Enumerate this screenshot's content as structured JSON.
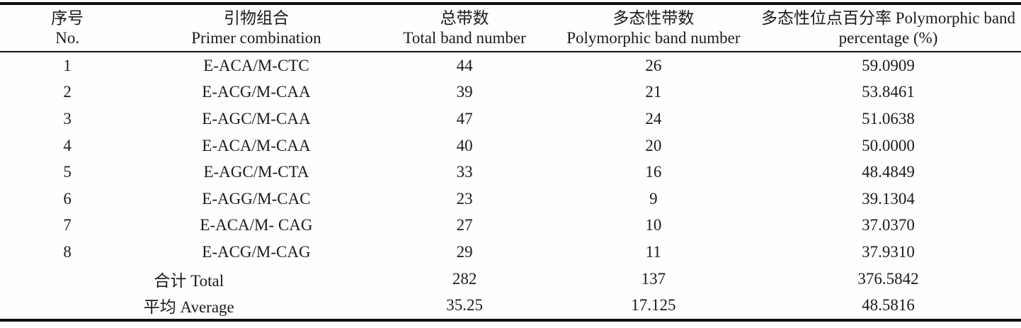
{
  "table": {
    "columns": [
      {
        "line1": "序号",
        "line2": "No."
      },
      {
        "line1": "引物组合",
        "line2": "Primer combination"
      },
      {
        "line1": "总带数",
        "line2": "Total band number"
      },
      {
        "line1": "多态性带数",
        "line2": "Polymorphic band number"
      },
      {
        "line1": "多态性位点百分率 Polymorphic band",
        "line2": "percentage (%)"
      }
    ],
    "rows": [
      {
        "no": "1",
        "primer": "E-ACA/M-CTC",
        "total_bands": "44",
        "polymorphic_bands": "26",
        "percentage": "59.0909"
      },
      {
        "no": "2",
        "primer": "E-ACG/M-CAA",
        "total_bands": "39",
        "polymorphic_bands": "21",
        "percentage": "53.8461"
      },
      {
        "no": "3",
        "primer": "E-AGC/M-CAA",
        "total_bands": "47",
        "polymorphic_bands": "24",
        "percentage": "51.0638"
      },
      {
        "no": "4",
        "primer": "E-ACA/M-CAA",
        "total_bands": "40",
        "polymorphic_bands": "20",
        "percentage": "50.0000"
      },
      {
        "no": "5",
        "primer": "E-AGC/M-CTA",
        "total_bands": "33",
        "polymorphic_bands": "16",
        "percentage": "48.4849"
      },
      {
        "no": "6",
        "primer": "E-AGG/M-CAC",
        "total_bands": "23",
        "polymorphic_bands": "9",
        "percentage": "39.1304"
      },
      {
        "no": "7",
        "primer": "E-ACA/M- CAG",
        "total_bands": "27",
        "polymorphic_bands": "10",
        "percentage": "37.0370"
      },
      {
        "no": "8",
        "primer": "E-ACG/M-CAG",
        "total_bands": "29",
        "polymorphic_bands": "11",
        "percentage": "37.9310"
      }
    ],
    "total_row": {
      "label": "合计 Total",
      "total_bands": "282",
      "polymorphic_bands": "137",
      "percentage": "376.5842"
    },
    "average_row": {
      "label": "平均 Average",
      "total_bands": "35.25",
      "polymorphic_bands": "17.125",
      "percentage": "48.5816"
    }
  },
  "colors": {
    "text": "#1b1b1b",
    "rule": "#0d0d0d",
    "background": "#fefefe"
  }
}
